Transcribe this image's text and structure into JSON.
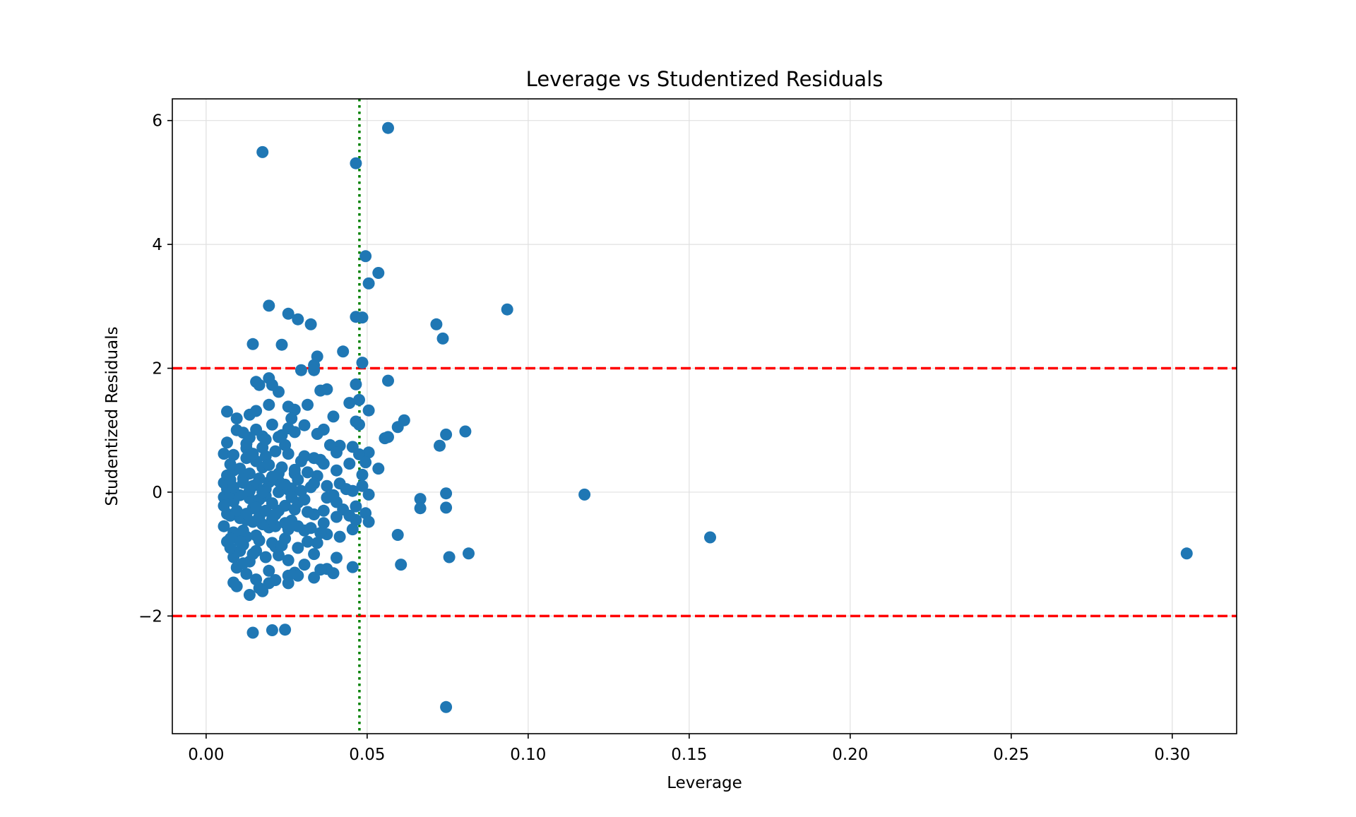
{
  "chart_data": {
    "type": "scatter",
    "title": "Leverage vs Studentized Residuals",
    "xlabel": "Leverage",
    "ylabel": "Studentized Residuals",
    "xlim": [
      -0.0105,
      0.32
    ],
    "ylim": [
      -3.9,
      6.35
    ],
    "x_ticks": [
      0.0,
      0.05,
      0.1,
      0.15,
      0.2,
      0.25,
      0.3
    ],
    "x_tick_labels": [
      "0.00",
      "0.05",
      "0.10",
      "0.15",
      "0.20",
      "0.25",
      "0.30"
    ],
    "y_ticks": [
      -2,
      0,
      2,
      4,
      6
    ],
    "y_tick_labels": [
      "−2",
      "0",
      "2",
      "4",
      "6"
    ],
    "grid": true,
    "marker_color": "#1f77b4",
    "reference_lines": [
      {
        "orientation": "horizontal",
        "value": 2,
        "style": "dashed",
        "color": "#ff0000"
      },
      {
        "orientation": "horizontal",
        "value": -2,
        "style": "dashed",
        "color": "#ff0000"
      },
      {
        "orientation": "vertical",
        "value": 0.0476,
        "style": "dotted",
        "color": "#008000"
      }
    ],
    "points": [
      [
        0.0565,
        5.88
      ],
      [
        0.0175,
        5.49
      ],
      [
        0.0465,
        5.31
      ],
      [
        0.0495,
        3.81
      ],
      [
        0.0535,
        3.54
      ],
      [
        0.0505,
        3.37
      ],
      [
        0.0195,
        3.01
      ],
      [
        0.0935,
        2.95
      ],
      [
        0.0255,
        2.88
      ],
      [
        0.0285,
        2.79
      ],
      [
        0.0465,
        2.83
      ],
      [
        0.0485,
        2.82
      ],
      [
        0.0715,
        2.71
      ],
      [
        0.0325,
        2.71
      ],
      [
        0.0735,
        2.48
      ],
      [
        0.0145,
        2.39
      ],
      [
        0.0235,
        2.38
      ],
      [
        0.0425,
        2.27
      ],
      [
        0.0345,
        2.19
      ],
      [
        0.0335,
        2.05
      ],
      [
        0.0485,
        2.09
      ],
      [
        0.0295,
        1.97
      ],
      [
        0.0335,
        1.97
      ],
      [
        0.0565,
        1.8
      ],
      [
        0.0155,
        1.78
      ],
      [
        0.0195,
        1.84
      ],
      [
        0.0465,
        1.74
      ],
      [
        0.0165,
        1.73
      ],
      [
        0.0205,
        1.73
      ],
      [
        0.0355,
        1.64
      ],
      [
        0.0375,
        1.66
      ],
      [
        0.0225,
        1.62
      ],
      [
        0.0475,
        1.49
      ],
      [
        0.0445,
        1.44
      ],
      [
        0.0195,
        1.41
      ],
      [
        0.0315,
        1.41
      ],
      [
        0.0255,
        1.38
      ],
      [
        0.0505,
        1.32
      ],
      [
        0.0065,
        1.3
      ],
      [
        0.0155,
        1.31
      ],
      [
        0.0275,
        1.33
      ],
      [
        0.0135,
        1.25
      ],
      [
        0.0395,
        1.22
      ],
      [
        0.0095,
        1.19
      ],
      [
        0.0265,
        1.19
      ],
      [
        0.0615,
        1.16
      ],
      [
        0.0465,
        1.14
      ],
      [
        0.0475,
        1.09
      ],
      [
        0.0205,
        1.09
      ],
      [
        0.0595,
        1.05
      ],
      [
        0.0305,
        1.08
      ],
      [
        0.0095,
        1.0
      ],
      [
        0.0155,
        1.01
      ],
      [
        0.0115,
        0.96
      ],
      [
        0.0255,
        1.03
      ],
      [
        0.0365,
        1.01
      ],
      [
        0.0805,
        0.98
      ],
      [
        0.0745,
        0.93
      ],
      [
        0.0275,
        0.97
      ],
      [
        0.0345,
        0.94
      ],
      [
        0.0225,
        0.89
      ],
      [
        0.0555,
        0.87
      ],
      [
        0.0135,
        0.88
      ],
      [
        0.0175,
        0.9
      ],
      [
        0.0565,
        0.89
      ],
      [
        0.0065,
        0.8
      ],
      [
        0.0415,
        0.75
      ],
      [
        0.0385,
        0.76
      ],
      [
        0.0455,
        0.73
      ],
      [
        0.0725,
        0.75
      ],
      [
        0.0125,
        0.71
      ],
      [
        0.0245,
        0.76
      ],
      [
        0.0335,
        0.55
      ],
      [
        0.0505,
        0.64
      ],
      [
        0.0475,
        0.61
      ],
      [
        0.0405,
        0.64
      ],
      [
        0.0055,
        0.62
      ],
      [
        0.0085,
        0.6
      ],
      [
        0.0185,
        0.58
      ],
      [
        0.0295,
        0.5
      ],
      [
        0.0365,
        0.46
      ],
      [
        0.0445,
        0.46
      ],
      [
        0.0495,
        0.48
      ],
      [
        0.0535,
        0.38
      ],
      [
        0.0405,
        0.35
      ],
      [
        0.0085,
        0.35
      ],
      [
        0.0175,
        0.4
      ],
      [
        0.0275,
        0.3
      ],
      [
        0.0345,
        0.26
      ],
      [
        0.0065,
        0.27
      ],
      [
        0.0485,
        0.28
      ],
      [
        0.0115,
        0.22
      ],
      [
        0.0225,
        0.18
      ],
      [
        0.0415,
        0.14
      ],
      [
        0.0055,
        0.15
      ],
      [
        0.0485,
        0.1
      ],
      [
        0.0155,
        0.12
      ],
      [
        0.0325,
        0.08
      ],
      [
        0.0065,
        0.05
      ],
      [
        0.0255,
        0.04
      ],
      [
        0.0455,
        0.02
      ],
      [
        0.0745,
        -0.02
      ],
      [
        0.1175,
        -0.04
      ],
      [
        0.0505,
        -0.04
      ],
      [
        0.0055,
        -0.08
      ],
      [
        0.0185,
        -0.06
      ],
      [
        0.0375,
        -0.09
      ],
      [
        0.0665,
        -0.11
      ],
      [
        0.0085,
        -0.15
      ],
      [
        0.0285,
        -0.17
      ],
      [
        0.0405,
        -0.16
      ],
      [
        0.0055,
        -0.22
      ],
      [
        0.0465,
        -0.23
      ],
      [
        0.0745,
        -0.25
      ],
      [
        0.0665,
        -0.26
      ],
      [
        0.0145,
        -0.26
      ],
      [
        0.0425,
        -0.28
      ],
      [
        0.0225,
        -0.3
      ],
      [
        0.0495,
        -0.34
      ],
      [
        0.0065,
        -0.35
      ],
      [
        0.0335,
        -0.36
      ],
      [
        0.0405,
        -0.4
      ],
      [
        0.0465,
        -0.45
      ],
      [
        0.0505,
        -0.48
      ],
      [
        0.0125,
        -0.45
      ],
      [
        0.0265,
        -0.46
      ],
      [
        0.0365,
        -0.5
      ],
      [
        0.0055,
        -0.55
      ],
      [
        0.0195,
        -0.57
      ],
      [
        0.0455,
        -0.6
      ],
      [
        0.0305,
        -0.62
      ],
      [
        0.0085,
        -0.65
      ],
      [
        0.0595,
        -0.69
      ],
      [
        0.0375,
        -0.68
      ],
      [
        0.0155,
        -0.7
      ],
      [
        0.0415,
        -0.72
      ],
      [
        0.1565,
        -0.73
      ],
      [
        0.0245,
        -0.75
      ],
      [
        0.0065,
        -0.8
      ],
      [
        0.0345,
        -0.82
      ],
      [
        0.0115,
        -0.85
      ],
      [
        0.0215,
        -0.88
      ],
      [
        0.0285,
        -0.9
      ],
      [
        0.0155,
        -0.95
      ],
      [
        0.0815,
        -0.99
      ],
      [
        0.3045,
        -0.99
      ],
      [
        0.0335,
        -1.0
      ],
      [
        0.0225,
        -1.02
      ],
      [
        0.0085,
        -1.05
      ],
      [
        0.0405,
        -1.06
      ],
      [
        0.0755,
        -1.05
      ],
      [
        0.0255,
        -1.1
      ],
      [
        0.0135,
        -1.12
      ],
      [
        0.0605,
        -1.17
      ],
      [
        0.0305,
        -1.17
      ],
      [
        0.0455,
        -1.21
      ],
      [
        0.0095,
        -1.22
      ],
      [
        0.0375,
        -1.24
      ],
      [
        0.0195,
        -1.27
      ],
      [
        0.0275,
        -1.3
      ],
      [
        0.0125,
        -1.32
      ],
      [
        0.0395,
        -1.31
      ],
      [
        0.0335,
        -1.38
      ],
      [
        0.0255,
        -1.35
      ],
      [
        0.0155,
        -1.41
      ],
      [
        0.0215,
        -1.42
      ],
      [
        0.0085,
        -1.46
      ],
      [
        0.0195,
        -1.47
      ],
      [
        0.0255,
        -1.47
      ],
      [
        0.0095,
        -1.52
      ],
      [
        0.0165,
        -1.55
      ],
      [
        0.0175,
        -1.6
      ],
      [
        0.0135,
        -1.66
      ],
      [
        0.0145,
        -2.27
      ],
      [
        0.0205,
        -2.23
      ],
      [
        0.0245,
        -2.22
      ],
      [
        0.0745,
        -3.47
      ],
      [
        0.0075,
        0.45
      ],
      [
        0.0105,
        0.38
      ],
      [
        0.0135,
        0.3
      ],
      [
        0.0165,
        0.22
      ],
      [
        0.0195,
        0.16
      ],
      [
        0.0235,
        0.1
      ],
      [
        0.0265,
        0.06
      ],
      [
        0.0295,
        0.02
      ],
      [
        0.0075,
        -0.02
      ],
      [
        0.0105,
        -0.05
      ],
      [
        0.0135,
        -0.1
      ],
      [
        0.0165,
        -0.12
      ],
      [
        0.0205,
        -0.18
      ],
      [
        0.0245,
        -0.22
      ],
      [
        0.0275,
        -0.28
      ],
      [
        0.0315,
        -0.32
      ],
      [
        0.0075,
        -0.38
      ],
      [
        0.0105,
        -0.42
      ],
      [
        0.0145,
        -0.48
      ],
      [
        0.0175,
        -0.52
      ],
      [
        0.0215,
        -0.55
      ],
      [
        0.0255,
        -0.6
      ],
      [
        0.0095,
        -0.68
      ],
      [
        0.0125,
        -0.72
      ],
      [
        0.0165,
        -0.78
      ],
      [
        0.0205,
        -0.82
      ],
      [
        0.0235,
        -0.86
      ],
      [
        0.0075,
        -0.9
      ],
      [
        0.0105,
        -0.95
      ],
      [
        0.0145,
        -1.0
      ],
      [
        0.0185,
        -1.05
      ],
      [
        0.0075,
        0.2
      ],
      [
        0.0115,
        0.15
      ],
      [
        0.0145,
        0.1
      ],
      [
        0.0185,
        0.05
      ],
      [
        0.0225,
        0.0
      ],
      [
        0.0265,
        -0.08
      ],
      [
        0.0305,
        -0.12
      ],
      [
        0.0125,
        0.55
      ],
      [
        0.0155,
        0.5
      ],
      [
        0.0195,
        0.44
      ],
      [
        0.0235,
        0.4
      ],
      [
        0.0275,
        0.36
      ],
      [
        0.0315,
        0.32
      ],
      [
        0.0125,
        0.78
      ],
      [
        0.0175,
        0.72
      ],
      [
        0.0215,
        0.66
      ],
      [
        0.0255,
        0.62
      ],
      [
        0.0305,
        0.58
      ],
      [
        0.0355,
        0.52
      ],
      [
        0.0095,
        -0.3
      ],
      [
        0.0125,
        -0.35
      ],
      [
        0.0165,
        -0.4
      ],
      [
        0.0205,
        -0.44
      ],
      [
        0.0245,
        -0.5
      ],
      [
        0.0285,
        -0.55
      ],
      [
        0.0325,
        -0.58
      ],
      [
        0.0355,
        -0.66
      ],
      [
        0.0085,
        0.08
      ],
      [
        0.0115,
        -0.62
      ],
      [
        0.0155,
        -0.25
      ],
      [
        0.0185,
        -0.3
      ],
      [
        0.0215,
        -0.36
      ],
      [
        0.0245,
        0.12
      ],
      [
        0.0285,
        0.2
      ],
      [
        0.0335,
        0.14
      ],
      [
        0.0375,
        0.1
      ],
      [
        0.0395,
        -0.05
      ],
      [
        0.0435,
        0.05
      ],
      [
        0.0445,
        -0.38
      ],
      [
        0.0365,
        -0.3
      ],
      [
        0.0315,
        -0.8
      ],
      [
        0.0285,
        -1.35
      ],
      [
        0.0355,
        -1.25
      ],
      [
        0.0115,
        -1.15
      ],
      [
        0.0075,
        -0.75
      ],
      [
        0.0105,
        -0.8
      ],
      [
        0.0135,
        0.02
      ],
      [
        0.0175,
        0.0
      ],
      [
        0.0205,
        0.25
      ],
      [
        0.0225,
        0.3
      ],
      [
        0.0145,
        0.62
      ],
      [
        0.0185,
        0.85
      ],
      [
        0.0235,
        0.92
      ]
    ]
  }
}
